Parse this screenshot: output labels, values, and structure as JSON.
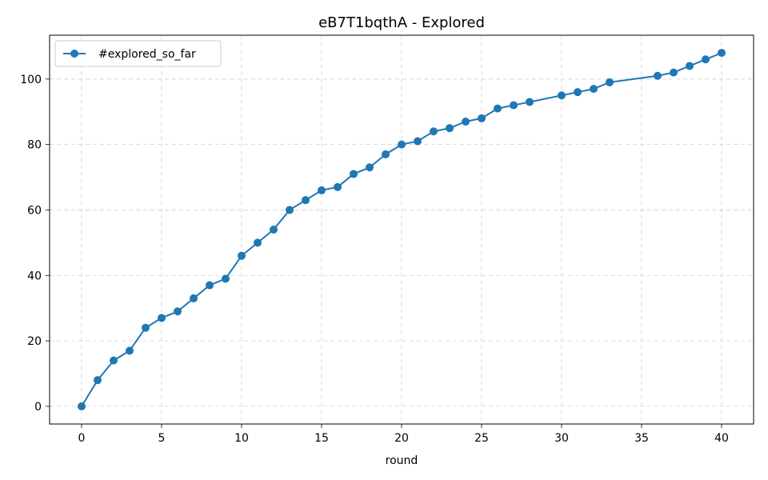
{
  "chart_data": {
    "type": "line",
    "title": "eB7T1bqthA - Explored",
    "xlabel": "round",
    "ylabel": "",
    "xlim": [
      -2,
      42
    ],
    "ylim": [
      -5.4,
      113.4
    ],
    "xticks": [
      0,
      5,
      10,
      15,
      20,
      25,
      30,
      35,
      40
    ],
    "yticks": [
      0,
      20,
      40,
      60,
      80,
      100
    ],
    "grid": true,
    "legend": "upper-left",
    "series": [
      {
        "name": "#explored_so_far",
        "color": "#1f77b4",
        "marker": "circle",
        "x": [
          0,
          1,
          2,
          3,
          4,
          5,
          6,
          7,
          8,
          9,
          10,
          11,
          12,
          13,
          14,
          15,
          16,
          17,
          18,
          19,
          20,
          21,
          22,
          23,
          24,
          25,
          26,
          27,
          28,
          30,
          31,
          32,
          33,
          36,
          37,
          38,
          39,
          40
        ],
        "y": [
          0,
          8,
          14,
          17,
          24,
          27,
          29,
          33,
          37,
          39,
          46,
          50,
          54,
          60,
          63,
          66,
          67,
          71,
          73,
          77,
          80,
          81,
          84,
          85,
          87,
          88,
          91,
          92,
          93,
          95,
          96,
          97,
          99,
          101,
          102,
          104,
          106,
          108
        ]
      }
    ]
  }
}
